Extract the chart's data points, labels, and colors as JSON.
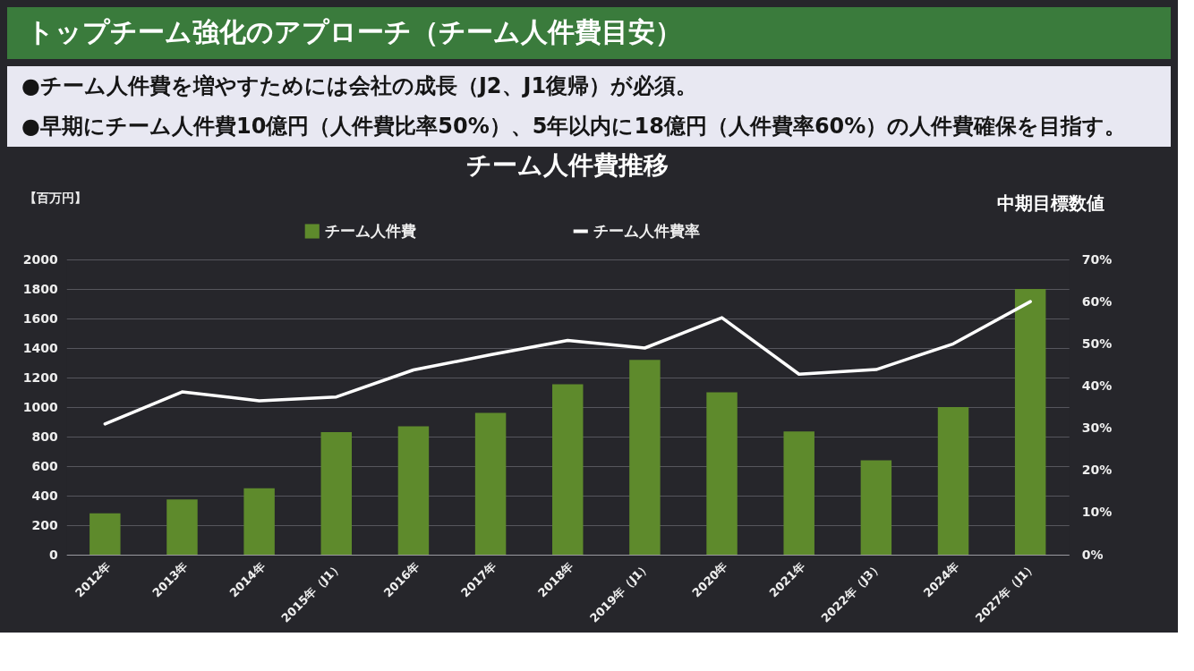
{
  "chart_data": {
    "type": "bar",
    "title": "トップチーム強化のアプローチ（チーム人件費目安）",
    "subtitle": "チーム人件費推移",
    "ylabel": "【百万円】",
    "annotations": [
      "●チーム人件費を増やすためには会社の成長（J2、J1復帰）が必須。",
      "●早期にチーム人件費10億円（人件費比率50%）、5年以内に18億円（人件費率60%）の人件費確保を目指す。",
      "中期目標数値"
    ],
    "categories": [
      "2012年",
      "2013年",
      "2014年",
      "2015年（J1）",
      "2016年",
      "2017年",
      "2018年",
      "2019年（J1）",
      "2020年",
      "2021年",
      "2022年（J3）",
      "2024年",
      "2027年（J1）"
    ],
    "series": [
      {
        "name": "チーム人件費",
        "color": "#5e8a2c",
        "values": [
          280,
          375,
          450,
          830,
          870,
          960,
          1155,
          1320,
          1100,
          835,
          640,
          1000,
          1800
        ]
      },
      {
        "name": "チーム人件費率",
        "type": "line",
        "axis": "y2",
        "color": "#ffffff",
        "values": [
          31,
          38.6,
          36.5,
          37.4,
          43.8,
          47.4,
          50.8,
          49,
          56.2,
          42.8,
          43.9,
          50,
          60
        ]
      }
    ],
    "ylim": [
      0,
      2000
    ],
    "yticks": [
      0,
      200,
      400,
      600,
      800,
      1000,
      1200,
      1400,
      1600,
      1800,
      2000
    ],
    "y2lim": [
      0,
      70
    ],
    "y2ticks": [
      {
        "value": 0,
        "label": "0%"
      },
      {
        "value": 10,
        "label": "10%"
      },
      {
        "value": 20,
        "label": "20%"
      },
      {
        "value": 30,
        "label": "30%"
      },
      {
        "value": 40,
        "label": "40%"
      },
      {
        "value": 50,
        "label": "50%"
      },
      {
        "value": 60,
        "label": "60%"
      },
      {
        "value": 70,
        "label": "70%"
      }
    ],
    "grid": "y",
    "legend": "top",
    "line_style": "solid"
  }
}
